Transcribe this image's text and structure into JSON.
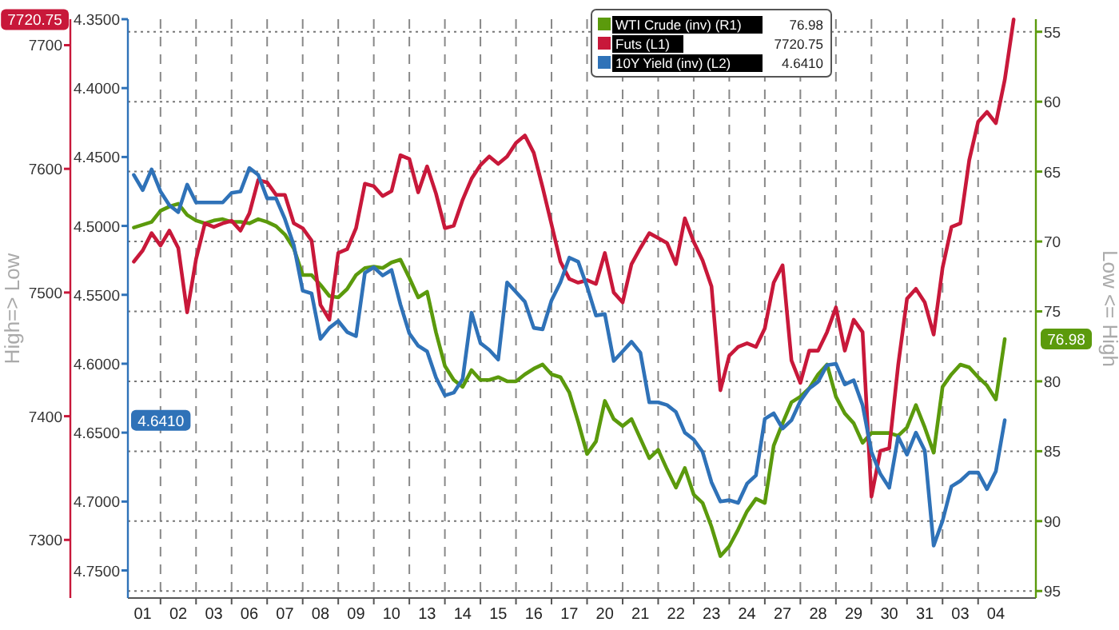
{
  "chart_data": {
    "type": "line",
    "ylabel": "High=> Low",
    "y3label": "Low <= High",
    "categories": [
      null,
      null,
      "01",
      null,
      null,
      null,
      "02",
      null,
      null,
      null,
      "03",
      null,
      null,
      null,
      "06",
      null,
      null,
      null,
      "07",
      null,
      null,
      null,
      "08",
      null,
      null,
      null,
      "09",
      null,
      null,
      null,
      "10",
      null,
      null,
      null,
      "13",
      null,
      null,
      null,
      "14",
      null,
      null,
      null,
      "15",
      null,
      null,
      null,
      "16",
      null,
      null,
      null,
      "17",
      null,
      null,
      null,
      "20",
      null,
      null,
      null,
      "21",
      null,
      null,
      null,
      "22",
      null,
      null,
      null,
      "23",
      null,
      null,
      null,
      "24",
      null,
      null,
      null,
      "27",
      null,
      null,
      null,
      "28",
      null,
      null,
      null,
      "29",
      null,
      null,
      null,
      "30",
      null,
      null,
      null,
      "31",
      null,
      null,
      null,
      "03",
      null,
      null,
      null,
      "04",
      null,
      null
    ],
    "ylim": [
      7253,
      7721
    ],
    "yticks": [
      7300,
      7400,
      7500,
      7600,
      7700
    ],
    "y2lim": [
      4.77,
      4.35
    ],
    "y2ticks": [
      {
        "value": 4.35,
        "label": "4.3500"
      },
      {
        "value": 4.4,
        "label": "4.4000"
      },
      {
        "value": 4.45,
        "label": "4.4500"
      },
      {
        "value": 4.5,
        "label": "4.5000"
      },
      {
        "value": 4.55,
        "label": "4.5500"
      },
      {
        "value": 4.6,
        "label": "4.6000"
      },
      {
        "value": 4.65,
        "label": "4.6500"
      },
      {
        "value": 4.7,
        "label": "4.7000"
      },
      {
        "value": 4.75,
        "label": "4.7500"
      }
    ],
    "y3lim": [
      95.5,
      54.1
    ],
    "y3ticks": [
      55,
      60,
      65,
      70,
      75,
      80,
      85,
      90,
      95
    ],
    "grid": true,
    "legend": "top",
    "line_style": "solid",
    "annotations": [
      "76.98",
      "7720.75",
      "4.6410"
    ],
    "series": [
      {
        "name": "WTI Crude (inv) (R1)",
        "color": "#5b9a0c",
        "axis": "y3",
        "values": [
          null,
          69.0,
          68.8,
          68.6,
          67.8,
          67.5,
          67.3,
          68.1,
          68.5,
          68.7,
          68.5,
          68.4,
          68.6,
          68.6,
          68.7,
          68.4,
          68.6,
          68.9,
          69.5,
          70.5,
          72.4,
          72.4,
          73.1,
          73.9,
          74.0,
          73.4,
          72.4,
          71.9,
          71.8,
          71.9,
          71.5,
          71.3,
          72.6,
          74.0,
          73.6,
          76.5,
          78.9,
          79.9,
          80.4,
          79.2,
          79.9,
          79.9,
          79.7,
          80.0,
          80.0,
          79.5,
          79.1,
          78.8,
          79.5,
          79.7,
          80.8,
          82.9,
          85.2,
          84.3,
          81.4,
          82.7,
          83.2,
          82.7,
          84.1,
          85.5,
          84.9,
          86.3,
          87.6,
          86.2,
          88.1,
          88.7,
          90.4,
          92.5,
          91.8,
          90.6,
          89.3,
          88.4,
          88.7,
          84.6,
          83.0,
          81.5,
          81.1,
          80.5,
          79.5,
          78.8,
          81.1,
          82.3,
          83.0,
          84.4,
          83.7,
          83.7,
          83.7,
          83.9,
          83.3,
          81.7,
          83.3,
          85.1,
          80.4,
          79.5,
          78.8,
          79.0,
          79.7,
          80.3,
          81.3,
          76.98,
          null
        ]
      },
      {
        "name": "Futs (L1)",
        "color": "#c8183a",
        "values": [
          null,
          7525,
          7534,
          7548,
          7538,
          7550,
          7536,
          7484,
          7527,
          7556,
          7553,
          7556,
          7558,
          7550,
          7564,
          7591,
          7589,
          7579,
          7579,
          7556,
          7552,
          7542,
          7490,
          7478,
          7532,
          7535,
          7552,
          7588,
          7586,
          7578,
          7582,
          7611,
          7608,
          7581,
          7602,
          7580,
          7552,
          7554,
          7575,
          7592,
          7603,
          7610,
          7604,
          7610,
          7621,
          7627,
          7613,
          7585,
          7555,
          7525,
          7511,
          7508,
          7510,
          7507,
          7532,
          7500,
          7492,
          7523,
          7536,
          7548,
          7544,
          7540,
          7523,
          7560,
          7541,
          7526,
          7505,
          7421,
          7449,
          7456,
          7459,
          7456,
          7471,
          7508,
          7522,
          7445,
          7427,
          7453,
          7453,
          7468,
          7488,
          7453,
          7478,
          7468,
          7335,
          7372,
          7374,
          7441,
          7495,
          7503,
          7492,
          7466,
          7520,
          7553,
          7556,
          7607,
          7638,
          7646,
          7637,
          7672,
          7720.75
        ]
      },
      {
        "name": "10Y Yield (inv) (L2)",
        "color": "#2f72b8",
        "axis": "y2",
        "values": [
          null,
          4.463,
          4.474,
          4.459,
          4.475,
          4.485,
          4.49,
          4.47,
          4.483,
          4.483,
          4.483,
          4.483,
          4.476,
          4.475,
          4.458,
          4.463,
          4.48,
          4.48,
          4.495,
          4.514,
          4.547,
          4.549,
          4.582,
          4.574,
          4.569,
          4.577,
          4.58,
          4.534,
          4.53,
          4.536,
          4.532,
          4.557,
          4.578,
          4.587,
          4.591,
          4.61,
          4.623,
          4.621,
          4.611,
          4.563,
          4.585,
          4.59,
          4.597,
          4.541,
          4.548,
          4.555,
          4.574,
          4.575,
          4.554,
          4.541,
          4.523,
          4.526,
          4.544,
          4.565,
          4.564,
          4.598,
          4.591,
          4.584,
          4.592,
          4.628,
          4.628,
          4.63,
          4.635,
          4.65,
          4.655,
          4.664,
          4.686,
          4.7,
          4.699,
          4.701,
          4.687,
          4.681,
          4.64,
          4.636,
          4.647,
          4.641,
          4.627,
          4.618,
          4.613,
          4.601,
          4.6,
          4.615,
          4.612,
          4.63,
          4.664,
          4.68,
          4.69,
          4.653,
          4.666,
          4.65,
          4.663,
          4.732,
          4.714,
          4.689,
          4.685,
          4.679,
          4.679,
          4.691,
          4.678,
          4.641,
          null
        ]
      }
    ]
  }
}
